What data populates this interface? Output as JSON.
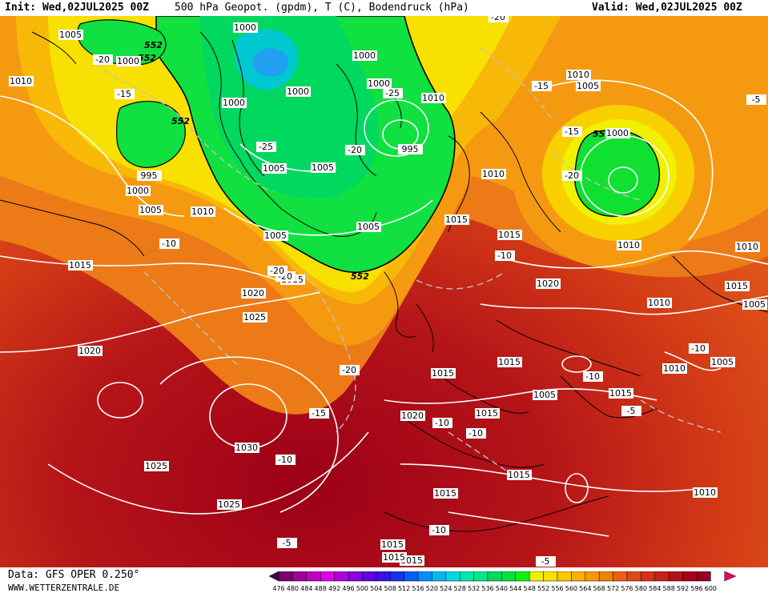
{
  "header": {
    "init": "Init: Wed,02JUL2025 00Z",
    "title": "500 hPa Geopot. (gpdm), T (C), Bodendruck (hPa)",
    "valid": "Valid: Wed,02JUL2025 00Z"
  },
  "footer": {
    "source": "Data: GFS OPER 0.250°",
    "site": "WWW.WETTERZENTRALE.DE"
  },
  "legend": {
    "values": [
      "476",
      "480",
      "484",
      "488",
      "492",
      "496",
      "500",
      "504",
      "508",
      "512",
      "516",
      "520",
      "524",
      "528",
      "532",
      "536",
      "540",
      "544",
      "548",
      "552",
      "556",
      "560",
      "564",
      "568",
      "572",
      "576",
      "580",
      "584",
      "588",
      "592",
      "596",
      "600"
    ],
    "colors": [
      "#4b0040",
      "#7a0070",
      "#a0009a",
      "#c000c0",
      "#e000e8",
      "#b000e0",
      "#8a00e0",
      "#6200e0",
      "#3a10e8",
      "#1a30f0",
      "#0060f8",
      "#0090f8",
      "#00b8f0",
      "#00d8e0",
      "#00e8b0",
      "#00e888",
      "#00d860",
      "#00e040",
      "#10f010",
      "#f0f000",
      "#f8e000",
      "#f8c800",
      "#f8b000",
      "#f89800",
      "#f08000",
      "#e86010",
      "#e04818",
      "#d83018",
      "#c82018",
      "#b81018",
      "#a80018",
      "#980020",
      "#e8006a"
    ]
  },
  "pressure_labels": [
    "1005",
    "1000",
    "1010",
    "995",
    "1000",
    "1005",
    "1010",
    "1015",
    "1020",
    "1025",
    "1020",
    "1030",
    "1025",
    "1025",
    "1000",
    "1000",
    "1000",
    "1000",
    "1000",
    "1005",
    "1005",
    "1005",
    "1010",
    "995",
    "1005",
    "1015",
    "1010",
    "1015",
    "1010",
    "1010",
    "1005",
    "1000",
    "1010",
    "1010",
    "1015",
    "1020",
    "1015",
    "1005",
    "1005",
    "1015",
    "1010",
    "1005",
    "1015",
    "1020",
    "1015",
    "1015",
    "1015",
    "1015",
    "1015",
    "1015",
    "1015",
    "1010",
    "1010"
  ],
  "geopot_labels": [
    "552",
    "552",
    "552",
    "552",
    "552"
  ],
  "temp_labels": [
    "-20",
    "-15",
    "-25",
    "-20",
    "-20",
    "-15",
    "-10",
    "-20",
    "-15",
    "-20",
    "-10",
    "-20",
    "-25",
    "-20",
    "-15",
    "-10",
    "-10",
    "-10",
    "-10",
    "-5",
    "-10",
    "-10",
    "-5",
    "-5",
    "-5"
  ]
}
